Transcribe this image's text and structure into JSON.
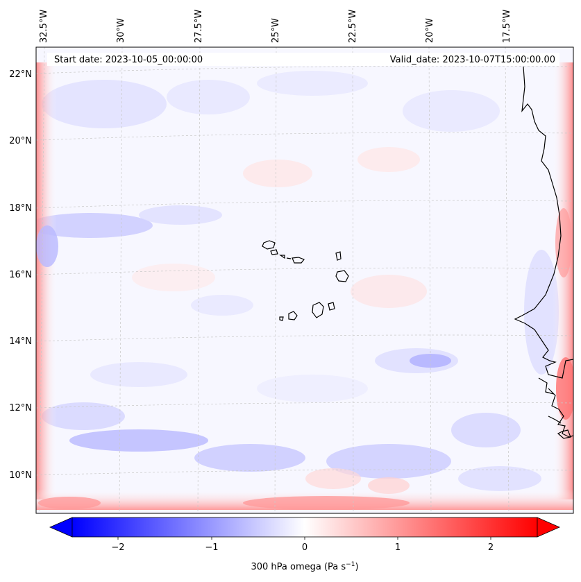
{
  "map": {
    "start_label": "Start date: 2023-10-05_00:00:00",
    "valid_label": "Valid_date: 2023-10-07T15:00:00.00",
    "lon_labels": [
      "32.5°W",
      "30°W",
      "27.5°W",
      "25°W",
      "22.5°W",
      "20°W",
      "17.5°W"
    ],
    "lat_labels": [
      "22°N",
      "20°N",
      "18°N",
      "16°N",
      "14°N",
      "12°N",
      "10°N"
    ],
    "coastline_color": "#000000",
    "gridline_color": "#c8c8c8"
  },
  "colorbar": {
    "ticks": [
      "−2",
      "−1",
      "0",
      "1",
      "2"
    ],
    "label_text": "300 hPa omega (Pa s",
    "label_exp": "−1",
    "label_close": ")",
    "cmap": "bwr",
    "vmin": -2.6,
    "vmax": 2.6,
    "color_low": "#0000ff",
    "color_mid": "#ffffff",
    "color_high": "#ff0000"
  }
}
